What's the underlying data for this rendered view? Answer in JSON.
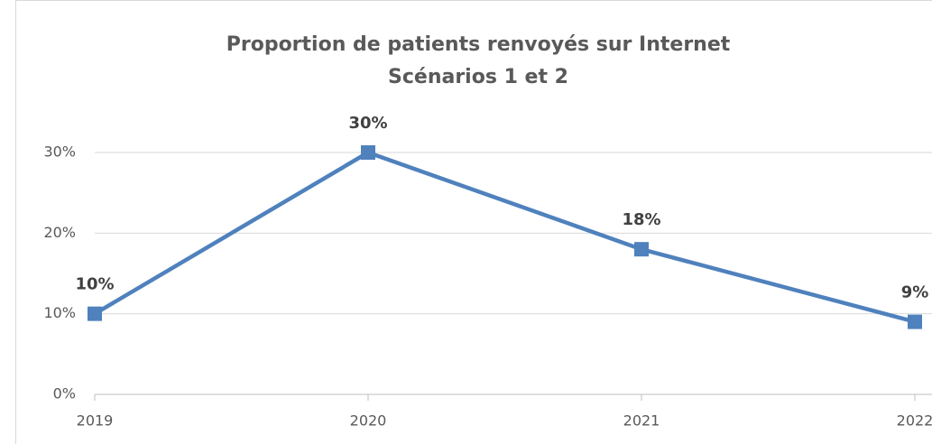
{
  "chart_data": {
    "type": "line",
    "title": "Proportion de patients renvoyés sur Internet",
    "subtitle": "Scénarios 1 et 2",
    "categories": [
      "2019",
      "2020",
      "2021",
      "2022"
    ],
    "values": [
      10,
      30,
      18,
      9
    ],
    "value_labels": [
      "10%",
      "30%",
      "18%",
      "9%"
    ],
    "color": "#4f81bd",
    "ylim": [
      0,
      30
    ],
    "yticks": [
      {
        "value": 0,
        "label": "0%"
      },
      {
        "value": 10,
        "label": "10%"
      },
      {
        "value": 20,
        "label": "20%"
      },
      {
        "value": 30,
        "label": "30%"
      }
    ],
    "grid": true
  }
}
